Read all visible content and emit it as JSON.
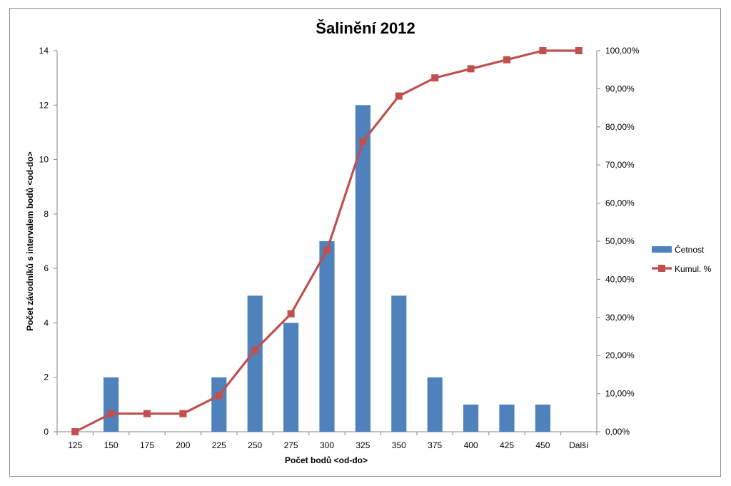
{
  "chart_data": {
    "type": "bar+line",
    "title": "Šalinění 2012",
    "xlabel": "Počet bodů <od-do>",
    "ylabel": "Počet závodníků s intervalem bodů <od-do>",
    "categories": [
      "125",
      "150",
      "175",
      "200",
      "225",
      "250",
      "275",
      "300",
      "325",
      "350",
      "375",
      "400",
      "425",
      "450",
      "Další"
    ],
    "y_left": {
      "min": 0,
      "max": 14,
      "step": 2,
      "ticks": [
        "0",
        "2",
        "4",
        "6",
        "8",
        "10",
        "12",
        "14"
      ]
    },
    "y_right": {
      "min": 0,
      "max": 100,
      "step": 10,
      "ticks": [
        "0,00%",
        "10,00%",
        "20,00%",
        "30,00%",
        "40,00%",
        "50,00%",
        "60,00%",
        "70,00%",
        "80,00%",
        "90,00%",
        "100,00%"
      ]
    },
    "grid": false,
    "legend_position": "right",
    "series": [
      {
        "name": "Četnost",
        "type": "bar",
        "axis": "left",
        "color": "#4f81bd",
        "values": [
          0,
          2,
          0,
          0,
          2,
          5,
          4,
          7,
          12,
          5,
          2,
          1,
          1,
          1,
          0
        ]
      },
      {
        "name": "Kumul. %",
        "type": "line",
        "axis": "right",
        "color": "#c0504d",
        "marker": "square",
        "values": [
          0,
          4.76,
          4.76,
          4.76,
          9.52,
          21.43,
          30.95,
          47.62,
          76.19,
          88.1,
          92.86,
          95.24,
          97.62,
          100,
          100
        ]
      }
    ]
  }
}
